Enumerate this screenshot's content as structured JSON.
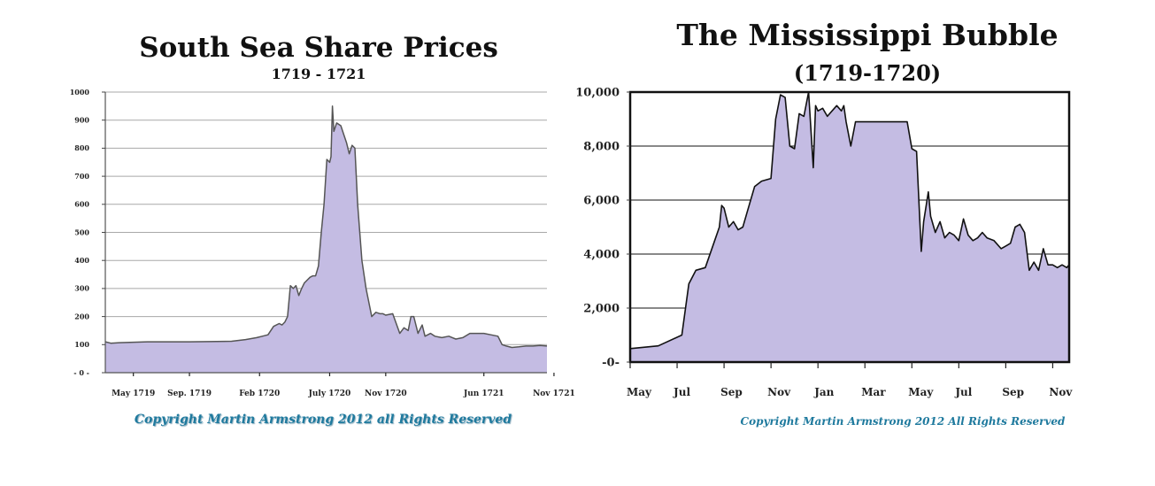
{
  "chart_data": [
    {
      "type": "area",
      "title": "South Sea Share Prices",
      "subtitle": "1719 - 1721",
      "ylim": [
        0,
        1000
      ],
      "yticks": [
        0,
        100,
        200,
        300,
        400,
        500,
        600,
        700,
        800,
        900,
        1000
      ],
      "ytick_labels": [
        "- 0 -",
        "100",
        "200",
        "300",
        "400",
        "500",
        "600",
        "700",
        "800",
        "900",
        "1000"
      ],
      "xlim": [
        0,
        31.5
      ],
      "xticks": [
        {
          "pos": 2,
          "label": "May 1719"
        },
        {
          "pos": 6,
          "label": "Sep. 1719"
        },
        {
          "pos": 11,
          "label": "Feb 1720"
        },
        {
          "pos": 16,
          "label": "July 1720"
        },
        {
          "pos": 20,
          "label": "Nov 1720"
        },
        {
          "pos": 27,
          "label": "Jun 1721"
        },
        {
          "pos": 32,
          "label": "Nov 1721"
        }
      ],
      "grid": true,
      "fill_color": "#c4bce3",
      "line_color": "#555555",
      "x": [
        0,
        0.4,
        1,
        3,
        6,
        9,
        10,
        10.8,
        11.2,
        11.6,
        12,
        12.4,
        12.6,
        12.8,
        13,
        13.2,
        13.4,
        13.6,
        13.8,
        14,
        14.2,
        14.4,
        14.6,
        14.8,
        15,
        15.2,
        15.4,
        15.6,
        15.8,
        16,
        16.1,
        16.2,
        16.3,
        16.5,
        16.8,
        17,
        17.2,
        17.4,
        17.6,
        17.8,
        18,
        18.3,
        18.6,
        19,
        19.3,
        19.6,
        19.8,
        20,
        20.5,
        21,
        21.3,
        21.6,
        21.8,
        22,
        22.3,
        22.6,
        22.8,
        23.2,
        23.5,
        24,
        24.5,
        25,
        25.5,
        26,
        26.5,
        27,
        27.5,
        28,
        28.3,
        28.6,
        29,
        29.5,
        30,
        30.5,
        31,
        31.5
      ],
      "y": [
        110,
        105,
        107,
        110,
        110,
        112,
        118,
        125,
        130,
        135,
        165,
        175,
        170,
        180,
        200,
        310,
        300,
        310,
        275,
        300,
        320,
        330,
        340,
        345,
        345,
        380,
        500,
        600,
        760,
        750,
        770,
        950,
        860,
        890,
        880,
        850,
        820,
        780,
        810,
        800,
        600,
        400,
        300,
        200,
        215,
        210,
        210,
        205,
        210,
        140,
        160,
        150,
        200,
        200,
        140,
        170,
        130,
        140,
        130,
        125,
        130,
        120,
        125,
        140,
        140,
        140,
        135,
        130,
        100,
        95,
        90,
        92,
        95,
        95,
        97,
        95
      ]
    },
    {
      "type": "area",
      "title": "The Mississippi Bubble",
      "subtitle": "(1719-1720)",
      "ylim": [
        0,
        10000
      ],
      "yticks": [
        0,
        2000,
        4000,
        6000,
        8000,
        10000
      ],
      "ytick_labels": [
        "-0-",
        "2,000",
        "4,000",
        "6,000",
        "8,000",
        "10,000"
      ],
      "xlim": [
        0,
        18.7
      ],
      "xticks": [
        {
          "pos": 0,
          "label": "May"
        },
        {
          "pos": 2,
          "label": "Jul"
        },
        {
          "pos": 4,
          "label": "Sep"
        },
        {
          "pos": 6,
          "label": "Nov"
        },
        {
          "pos": 8,
          "label": "Jan"
        },
        {
          "pos": 10,
          "label": "Mar"
        },
        {
          "pos": 12,
          "label": "May"
        },
        {
          "pos": 14,
          "label": "Jul"
        },
        {
          "pos": 16,
          "label": "Sep"
        },
        {
          "pos": 18,
          "label": "Nov"
        }
      ],
      "grid": true,
      "fill_color": "#c4bce3",
      "line_color": "#111111",
      "x": [
        0,
        1.2,
        2.2,
        2.5,
        2.8,
        3.2,
        3.6,
        3.8,
        3.9,
        4,
        4.2,
        4.4,
        4.6,
        4.8,
        5,
        5.3,
        5.6,
        6,
        6.2,
        6.4,
        6.6,
        6.8,
        7,
        7.2,
        7.4,
        7.6,
        7.8,
        7.9,
        8,
        8.2,
        8.4,
        8.6,
        8.8,
        9,
        9.1,
        9.2,
        9.4,
        9.6,
        9.8,
        10,
        11,
        11.8,
        12,
        12.2,
        12.4,
        12.5,
        12.7,
        12.8,
        13,
        13.2,
        13.4,
        13.6,
        13.8,
        14,
        14.2,
        14.4,
        14.6,
        14.8,
        15,
        15.2,
        15.5,
        15.8,
        16,
        16.2,
        16.4,
        16.6,
        16.8,
        17,
        17.2,
        17.4,
        17.6,
        17.8,
        18,
        18.2,
        18.4,
        18.6,
        18.7
      ],
      "y": [
        500,
        600,
        1000,
        2900,
        3400,
        3500,
        4500,
        5000,
        5800,
        5700,
        5000,
        5200,
        4900,
        5000,
        5600,
        6500,
        6700,
        6800,
        9000,
        9900,
        9800,
        8000,
        7900,
        9200,
        9100,
        10000,
        7200,
        9500,
        9300,
        9400,
        9100,
        9300,
        9500,
        9300,
        9500,
        8900,
        8000,
        8900,
        8900,
        8900,
        8900,
        8900,
        7900,
        7800,
        4100,
        5200,
        6300,
        5400,
        4800,
        5200,
        4600,
        4800,
        4700,
        4500,
        5300,
        4700,
        4500,
        4600,
        4800,
        4600,
        4500,
        4200,
        4300,
        4400,
        5000,
        5100,
        4800,
        3400,
        3700,
        3400,
        4200,
        3600,
        3600,
        3500,
        3600,
        3500,
        3600
      ]
    }
  ],
  "left": {
    "title": "South Sea Share Prices",
    "subtitle": "1719 - 1721",
    "copyright": "Copyright Martin Armstrong 2012 all Rights Reserved"
  },
  "right": {
    "title": "The Mississippi Bubble",
    "subtitle": "(1719-1720)",
    "copyright": "Copyright Martin Armstrong 2012 All Rights Reserved"
  }
}
